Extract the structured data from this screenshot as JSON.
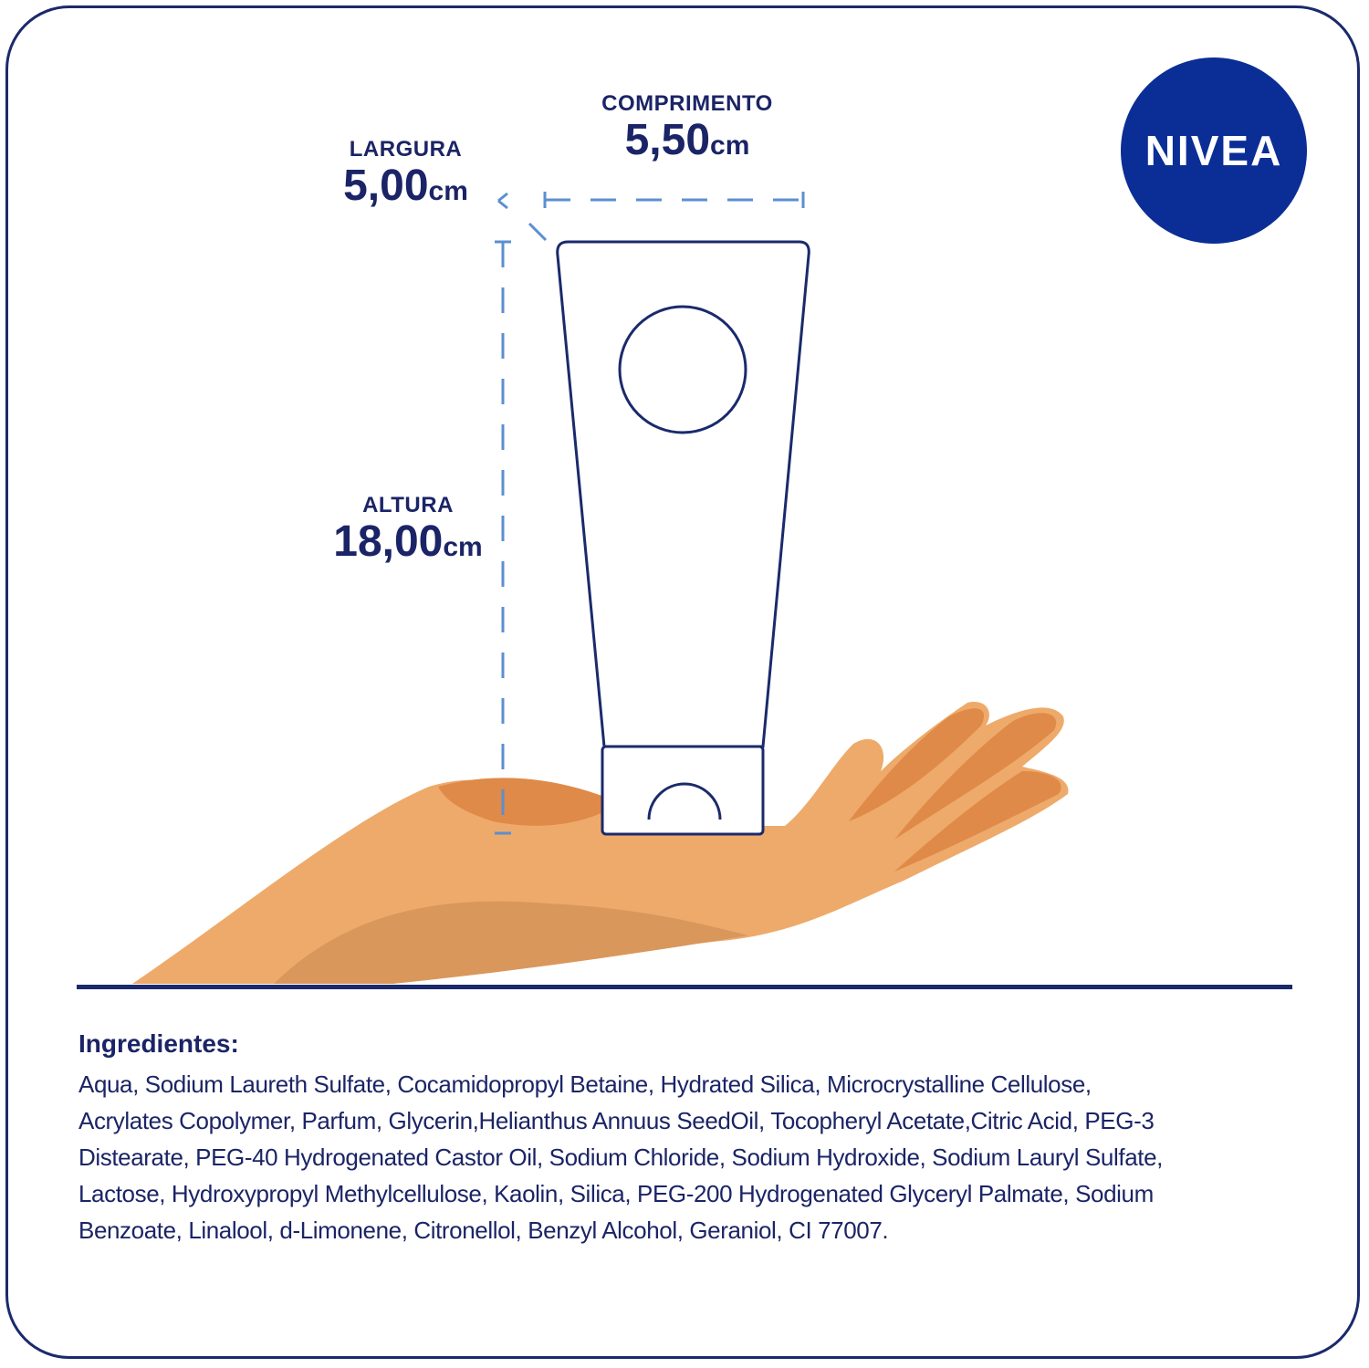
{
  "brand": {
    "logo_text": "NIVEA",
    "color": "#0b2e96"
  },
  "dimensions": {
    "width": {
      "label": "LARGURA",
      "value": "5,00",
      "unit": "cm"
    },
    "length": {
      "label": "COMPRIMENTO",
      "value": "5,50",
      "unit": "cm"
    },
    "height": {
      "label": "ALTURA",
      "value": "18,00",
      "unit": "cm"
    }
  },
  "ingredients": {
    "title": "Ingredientes:",
    "lines": [
      "Aqua, Sodium Laureth Sulfate, Cocamidopropyl Betaine, Hydrated Silica, Microcrystalline Cellulose,",
      "Acrylates Copolymer, Parfum, Glycerin,Helianthus Annuus SeedOil, Tocopheryl Acetate,Citric Acid, PEG-3",
      "Distearate, PEG-40 Hydrogenated Castor Oil, Sodium Chloride, Sodium Hydroxide, Sodium Lauryl Sulfate,",
      "Lactose, Hydroxypropyl Methylcellulose, Kaolin, Silica, PEG-200 Hydrogenated Glyceryl Palmate, Sodium",
      "Benzoate, Linalool, d-Limonene, Citronellol, Benzyl Alcohol, Geraniol, CI 77007."
    ]
  },
  "colors": {
    "text": "#1b2466",
    "dash": "#5b8fd0",
    "skin_light": "#eeaa6a",
    "skin_dark": "#df8a48"
  }
}
